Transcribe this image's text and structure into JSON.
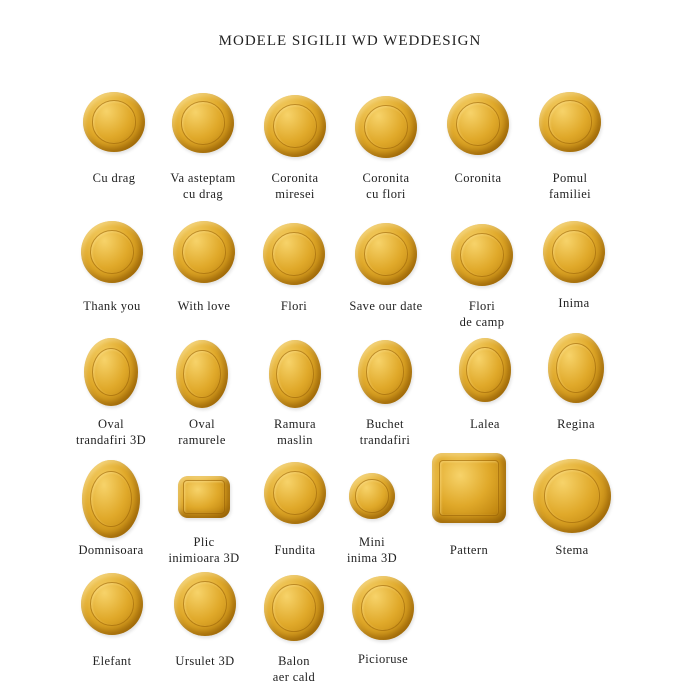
{
  "title": "MODELE SIGILII WD WEDDESIGN",
  "accent_color": "#d9a12a",
  "seals": [
    {
      "label_lines": [
        "Cu drag"
      ]
    },
    {
      "label_lines": [
        "Va asteptam",
        "cu drag"
      ]
    },
    {
      "label_lines": [
        "Coronita",
        "miresei"
      ]
    },
    {
      "label_lines": [
        "Coronita",
        "cu flori"
      ]
    },
    {
      "label_lines": [
        "Coronita"
      ]
    },
    {
      "label_lines": [
        "Pomul",
        "familiei"
      ]
    },
    {
      "label_lines": [
        "Thank you"
      ]
    },
    {
      "label_lines": [
        "With love"
      ]
    },
    {
      "label_lines": [
        "Flori"
      ]
    },
    {
      "label_lines": [
        "Save our date"
      ]
    },
    {
      "label_lines": [
        "Flori",
        "de camp"
      ]
    },
    {
      "label_lines": [
        "Inima"
      ]
    },
    {
      "label_lines": [
        "Oval",
        "trandafiri 3D"
      ]
    },
    {
      "label_lines": [
        "Oval",
        "ramurele"
      ]
    },
    {
      "label_lines": [
        "Ramura",
        "maslin"
      ]
    },
    {
      "label_lines": [
        "Buchet",
        "trandafiri"
      ]
    },
    {
      "label_lines": [
        "Lalea"
      ]
    },
    {
      "label_lines": [
        "Regina"
      ]
    },
    {
      "label_lines": [
        "Domnisoara"
      ]
    },
    {
      "label_lines": [
        "Plic",
        "inimioara 3D"
      ]
    },
    {
      "label_lines": [
        "Fundita"
      ]
    },
    {
      "label_lines": [
        "Mini",
        "inima 3D"
      ]
    },
    {
      "label_lines": [
        "Pattern"
      ]
    },
    {
      "label_lines": [
        "Stema"
      ]
    },
    {
      "label_lines": [
        "Elefant"
      ]
    },
    {
      "label_lines": [
        "Ursulet 3D"
      ]
    },
    {
      "label_lines": [
        "Balon",
        "aer cald"
      ]
    },
    {
      "label_lines": [
        "Picioruse"
      ]
    }
  ]
}
